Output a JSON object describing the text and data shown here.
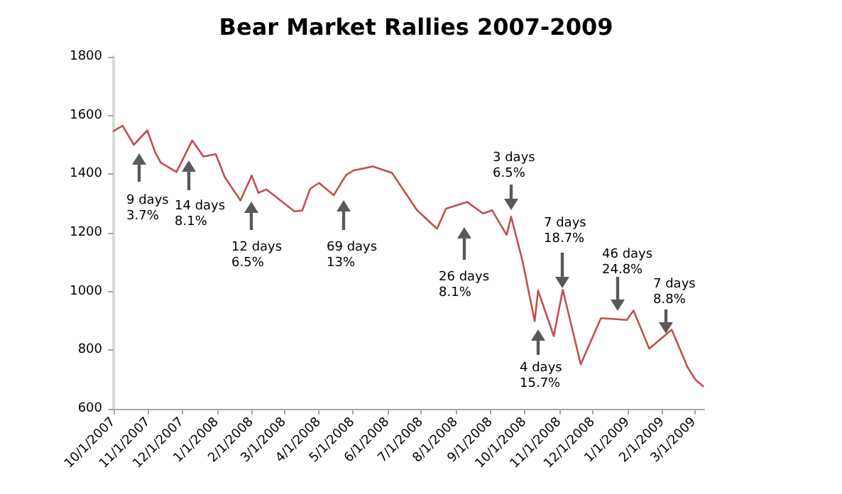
{
  "chart_data": {
    "type": "line",
    "title": "Bear Market Rallies 2007-2009",
    "x": [
      "2007-10-01",
      "2007-10-09",
      "2007-10-19",
      "2007-10-31",
      "2007-11-07",
      "2007-11-12",
      "2007-11-26",
      "2007-12-10",
      "2007-12-20",
      "2007-12-31",
      "2008-01-08",
      "2008-01-22",
      "2008-02-01",
      "2008-02-07",
      "2008-02-14",
      "2008-03-10",
      "2008-03-17",
      "2008-03-24",
      "2008-04-01",
      "2008-04-14",
      "2008-04-25",
      "2008-05-02",
      "2008-05-19",
      "2008-06-05",
      "2008-06-27",
      "2008-07-15",
      "2008-07-23",
      "2008-08-11",
      "2008-08-25",
      "2008-09-02",
      "2008-09-15",
      "2008-09-19",
      "2008-09-29",
      "2008-10-10",
      "2008-10-13",
      "2008-10-27",
      "2008-11-04",
      "2008-11-20",
      "2008-12-08",
      "2008-12-31",
      "2009-01-06",
      "2009-01-20",
      "2009-02-09",
      "2009-02-23",
      "2009-03-02",
      "2009-03-09"
    ],
    "series": [
      {
        "color": "#c0504d",
        "values": [
          1547,
          1565,
          1500,
          1549,
          1475,
          1439,
          1407,
          1515,
          1460,
          1468,
          1390,
          1310,
          1395,
          1336,
          1348,
          1273,
          1276,
          1350,
          1370,
          1328,
          1397,
          1413,
          1426,
          1404,
          1278,
          1214,
          1282,
          1305,
          1266,
          1277,
          1193,
          1255,
          1106,
          899,
          1003,
          848,
          1006,
          752,
          909,
          903,
          935,
          805,
          870,
          743,
          700,
          677
        ]
      }
    ],
    "xlim": [
      "2007-10-01",
      "2009-03-10"
    ],
    "xticks": [
      {
        "value": "2007-10-01",
        "label": "10/1/2007"
      },
      {
        "value": "2007-11-01",
        "label": "11/1/2007"
      },
      {
        "value": "2007-12-01",
        "label": "12/1/2007"
      },
      {
        "value": "2008-01-01",
        "label": "1/1/2008"
      },
      {
        "value": "2008-02-01",
        "label": "2/1/2008"
      },
      {
        "value": "2008-03-01",
        "label": "3/1/2008"
      },
      {
        "value": "2008-04-01",
        "label": "4/1/2008"
      },
      {
        "value": "2008-05-01",
        "label": "5/1/2008"
      },
      {
        "value": "2008-06-01",
        "label": "6/1/2008"
      },
      {
        "value": "2008-07-01",
        "label": "7/1/2008"
      },
      {
        "value": "2008-08-01",
        "label": "8/1/2008"
      },
      {
        "value": "2008-09-01",
        "label": "9/1/2008"
      },
      {
        "value": "2008-10-01",
        "label": "10/1/2008"
      },
      {
        "value": "2008-11-01",
        "label": "11/1/2008"
      },
      {
        "value": "2008-12-01",
        "label": "12/1/2008"
      },
      {
        "value": "2009-01-01",
        "label": "1/1/2009"
      },
      {
        "value": "2009-02-01",
        "label": "2/1/2009"
      },
      {
        "value": "2009-03-01",
        "label": "3/1/2009"
      }
    ],
    "ylim": [
      600,
      1800
    ],
    "yticks": [
      600,
      800,
      1000,
      1200,
      1400,
      1600,
      1800
    ],
    "grid": false,
    "marker": "none",
    "line_style": "solid",
    "annotations": [
      "9 days\n3.7%",
      "14 days\n8.1%",
      "12 days\n6.5%",
      "69 days\n13%",
      "26 days\n8.1%",
      "3 days\n6.5%",
      "4 days\n15.7%",
      "7 days\n18.7%",
      "46 days\n24.8%",
      "7 days\n8.8%"
    ]
  }
}
